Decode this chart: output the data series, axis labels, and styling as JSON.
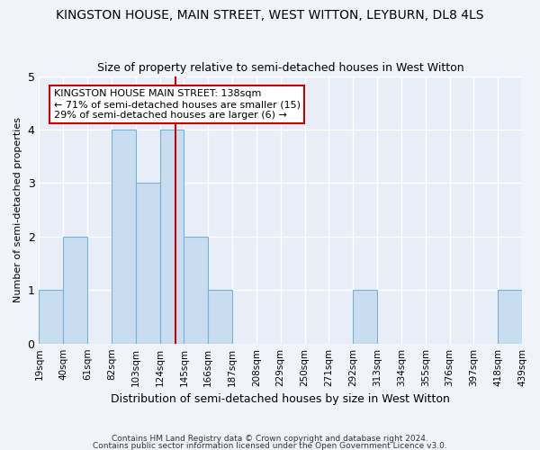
{
  "title": "KINGSTON HOUSE, MAIN STREET, WEST WITTON, LEYBURN, DL8 4LS",
  "subtitle": "Size of property relative to semi-detached houses in West Witton",
  "xlabel": "Distribution of semi-detached houses by size in West Witton",
  "ylabel": "Number of semi-detached properties",
  "footnote1": "Contains HM Land Registry data © Crown copyright and database right 2024.",
  "footnote2": "Contains public sector information licensed under the Open Government Licence v3.0.",
  "bin_edges": [
    19,
    40,
    61,
    82,
    103,
    124,
    145,
    166,
    187,
    208,
    229,
    250,
    271,
    292,
    313,
    334,
    355,
    376,
    397,
    418,
    439
  ],
  "tick_labels": [
    "19sqm",
    "40sqm",
    "61sqm",
    "82sqm",
    "103sqm",
    "124sqm",
    "145sqm",
    "166sqm",
    "187sqm",
    "208sqm",
    "229sqm",
    "250sqm",
    "271sqm",
    "292sqm",
    "313sqm",
    "334sqm",
    "355sqm",
    "376sqm",
    "397sqm",
    "418sqm",
    "439sqm"
  ],
  "values": [
    1,
    2,
    0,
    4,
    3,
    4,
    2,
    1,
    0,
    0,
    0,
    0,
    0,
    1,
    0,
    0,
    0,
    0,
    0,
    1
  ],
  "bar_color": "#c8ddf0",
  "bar_edge_color": "#7ab0d4",
  "marker_value": 138,
  "marker_color": "#cc0000",
  "annotation_title": "KINGSTON HOUSE MAIN STREET: 138sqm",
  "annotation_line1": "← 71% of semi-detached houses are smaller (15)",
  "annotation_line2": "29% of semi-detached houses are larger (6) →",
  "ylim": [
    0,
    5
  ],
  "yticks": [
    0,
    1,
    2,
    3,
    4,
    5
  ],
  "background_color": "#f0f4fa",
  "title_fontsize": 10,
  "subtitle_fontsize": 9,
  "annotation_box_color": "#ffffff",
  "annotation_box_edge": "#cc0000",
  "axis_bg": "#e8eef8"
}
